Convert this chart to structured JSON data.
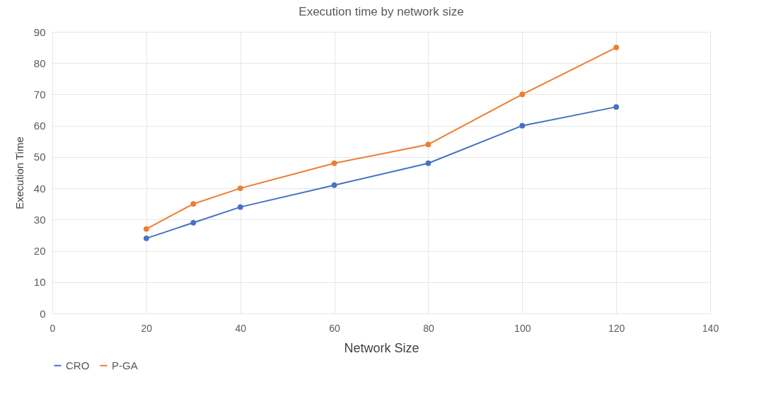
{
  "chart_data": {
    "type": "line",
    "title": "Execution time by network size",
    "xlabel": "Network Size",
    "ylabel": "Execution Time",
    "x": [
      20,
      30,
      40,
      60,
      80,
      100,
      120
    ],
    "series": [
      {
        "name": "CRO",
        "color": "#4472c4",
        "values": [
          24,
          29,
          34,
          41,
          48,
          60,
          66
        ]
      },
      {
        "name": "P-GA",
        "color": "#ed7d31",
        "values": [
          27,
          35,
          40,
          48,
          54,
          70,
          85
        ]
      }
    ],
    "xlim": [
      0,
      140
    ],
    "xticks": [
      0,
      20,
      40,
      60,
      80,
      100,
      120,
      140
    ],
    "ylim": [
      0,
      90
    ],
    "yticks": [
      0,
      10,
      20,
      30,
      40,
      50,
      60,
      70,
      80,
      90
    ],
    "grid": true,
    "legend": "bottom left",
    "marker": "circle",
    "line_style": "solid"
  }
}
